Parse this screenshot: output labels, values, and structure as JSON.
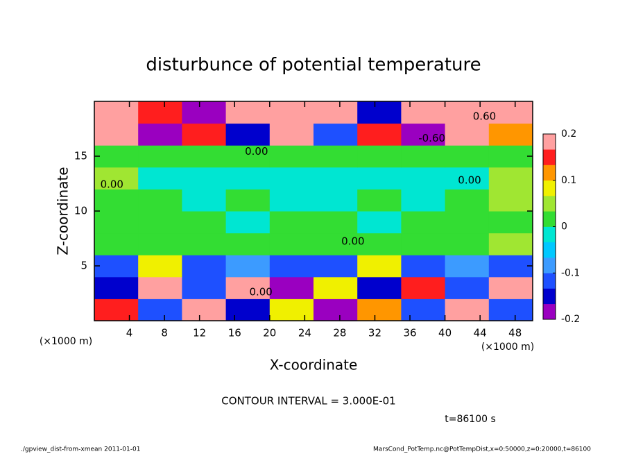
{
  "chart_data": {
    "type": "heatmap",
    "title": "disturbunce of potential temperature",
    "x_label": "X-coordinate",
    "y_label": "Z-coordinate",
    "x_unit": "(×1000 m)",
    "x_unit_right": "(×1000 m)",
    "contour_note": "CONTOUR INTERVAL = 3.000E-01",
    "time_label": "t=86100 s",
    "footer_left": "./gpview_dist-from-xmean   2011-01-01",
    "footer_right": "MarsCond_PotTemp.nc@PotTempDist,x=0:50000,z=0:20000,t=86100",
    "xlim": [
      0,
      50
    ],
    "ylim": [
      0,
      20
    ],
    "xticks": [
      4,
      8,
      12,
      16,
      20,
      24,
      28,
      32,
      36,
      40,
      44,
      48
    ],
    "yticks": [
      5,
      10,
      15
    ],
    "x_bins": [
      0,
      5,
      10,
      15,
      20,
      25,
      30,
      35,
      40,
      45,
      50
    ],
    "y_bins": [
      0,
      2,
      4,
      6,
      8,
      10,
      12,
      14,
      16,
      18,
      20
    ],
    "z": [
      [
        0.15,
        -0.1,
        0.2,
        -0.15,
        0.1,
        -0.2,
        0.12,
        -0.1,
        0.18,
        -0.12
      ],
      [
        -0.15,
        0.18,
        -0.12,
        0.2,
        -0.18,
        0.1,
        -0.15,
        0.15,
        -0.1,
        0.2
      ],
      [
        -0.1,
        0.1,
        -0.12,
        -0.08,
        -0.1,
        -0.12,
        0.08,
        -0.1,
        -0.09,
        -0.12
      ],
      [
        0.02,
        0.03,
        0.02,
        0.02,
        0.01,
        0.02,
        0.03,
        0.02,
        0.03,
        0.04
      ],
      [
        0.01,
        0.02,
        0.01,
        0,
        0.01,
        0.01,
        0,
        0.01,
        0.02,
        0.03
      ],
      [
        0.03,
        0.01,
        0,
        0.01,
        0,
        0,
        0.01,
        0,
        0.02,
        0.05
      ],
      [
        0.05,
        -0.02,
        -0.03,
        -0.03,
        -0.02,
        -0.03,
        -0.03,
        -0.02,
        -0.02,
        0.06
      ],
      [
        0.02,
        0.01,
        0.02,
        0.01,
        0.02,
        0.01,
        0.01,
        0.02,
        0.01,
        0.03
      ],
      [
        0.18,
        -0.2,
        0.15,
        -0.15,
        0.2,
        -0.1,
        0.16,
        -0.18,
        0.2,
        0.12
      ],
      [
        0.2,
        0.15,
        -0.2,
        0.18,
        0.2,
        0.17,
        -0.15,
        0.2,
        0.2,
        0.19
      ]
    ],
    "colorbar": {
      "levels": [
        -0.2,
        -0.1667,
        -0.1333,
        -0.1,
        -0.0667,
        -0.0333,
        0,
        0.0333,
        0.0667,
        0.1,
        0.1333,
        0.1667,
        0.2
      ],
      "colors": [
        "#9a00c0",
        "#0000cd",
        "#1e50ff",
        "#3c9bff",
        "#00c8ff",
        "#00e6d2",
        "#33dd33",
        "#a0e632",
        "#f0f000",
        "#ff9600",
        "#ff1e1e",
        "#ffa0a0"
      ],
      "ticks": [
        -0.2,
        -0.1,
        0,
        0.1,
        0.2
      ]
    },
    "annotations": [
      {
        "text": "0.00",
        "x": 18.5,
        "y": 15.4
      },
      {
        "text": "0.00",
        "x": 42.8,
        "y": 12.8
      },
      {
        "text": "0.00",
        "x": 29.5,
        "y": 7.2
      },
      {
        "text": "0.00",
        "x": 19,
        "y": 2.6
      },
      {
        "text": "0.00",
        "x": 2,
        "y": 12.4
      },
      {
        "text": "0.60",
        "x": 44.5,
        "y": 18.6
      },
      {
        "text": "-0.60",
        "x": 38.5,
        "y": 16.6
      }
    ]
  }
}
